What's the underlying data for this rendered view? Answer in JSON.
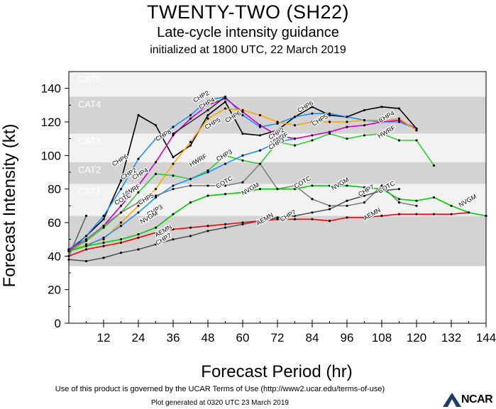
{
  "header": {
    "title": "TWENTY-TWO (SH22)",
    "subtitle": "Late-cycle intensity guidance",
    "initialized": "initialized at 1800 UTC, 22 March 2019"
  },
  "footer": {
    "terms": "Use of this product is governed by the UCAR Terms of Use (http://www2.ucar.edu/terms-of-use)",
    "generated": "Plot generated at 0320 UTC   23 March 2019",
    "logo_text": "NCAR"
  },
  "chart_data": {
    "type": "line",
    "title": "",
    "xlabel": "Forecast Period (hr)",
    "ylabel": "Forecast Intensity (kt)",
    "xlim": [
      0,
      144
    ],
    "ylim": [
      0,
      150
    ],
    "xticks": [
      12,
      24,
      36,
      48,
      60,
      72,
      84,
      96,
      108,
      120,
      132,
      144
    ],
    "yticks": [
      0,
      20,
      40,
      60,
      80,
      100,
      120,
      140
    ],
    "bands": [
      {
        "label": "CAT5",
        "from": 135,
        "to": 150,
        "color": "#f2f2f2"
      },
      {
        "label": "CAT4",
        "from": 113,
        "to": 135,
        "color": "#d3d3d3"
      },
      {
        "label": "CAT3",
        "from": 96,
        "to": 113,
        "color": "#f2f2f2"
      },
      {
        "label": "CAT2",
        "from": 83,
        "to": 96,
        "color": "#d3d3d3"
      },
      {
        "label": "CAT1",
        "from": 64,
        "to": 83,
        "color": "#f2f2f2"
      },
      {
        "label": "",
        "from": 34,
        "to": 64,
        "color": "#d3d3d3"
      }
    ],
    "ts_label": "TS",
    "series": [
      {
        "name": "CHP6",
        "color": "#000000",
        "x": [
          0,
          6,
          12,
          18,
          24,
          30,
          36,
          42,
          48,
          54,
          60,
          66,
          72,
          78,
          84,
          90,
          96,
          102,
          108,
          114,
          120
        ],
        "y": [
          43,
          52,
          62,
          85,
          124,
          118,
          99,
          106,
          124,
          132,
          113,
          112,
          115,
          123,
          129,
          124,
          123,
          127,
          129,
          128,
          116
        ],
        "labels": [
          {
            "x": 18,
            "y": 96
          },
          {
            "x": 57,
            "y": 122
          },
          {
            "x": 82,
            "y": 128
          }
        ]
      },
      {
        "name": "CHP2",
        "color": "#1e90ff",
        "x": [
          0,
          6,
          12,
          18,
          24,
          30,
          36,
          42,
          48,
          54,
          60,
          66,
          72,
          78,
          84,
          90,
          96,
          102,
          108,
          114,
          120
        ],
        "y": [
          44,
          52,
          64,
          80,
          98,
          110,
          117,
          124,
          133,
          135,
          124,
          117,
          119,
          123,
          125,
          125,
          123,
          121,
          120,
          120,
          116
        ],
        "labels": [
          {
            "x": 21,
            "y": 88
          },
          {
            "x": 46,
            "y": 134
          },
          {
            "x": 72,
            "y": 112
          }
        ]
      },
      {
        "name": "CHP4",
        "color": "#cc00cc",
        "x": [
          0,
          6,
          12,
          18,
          24,
          30,
          36,
          42,
          48,
          54,
          60,
          66,
          72,
          78,
          84,
          90,
          96,
          102,
          108,
          114,
          120
        ],
        "y": [
          44,
          50,
          58,
          70,
          82,
          96,
          112,
          122,
          130,
          134,
          126,
          118,
          112,
          110,
          112,
          114,
          117,
          118,
          120,
          121,
          116
        ],
        "labels": [
          {
            "x": 25,
            "y": 88
          },
          {
            "x": 48,
            "y": 130
          },
          {
            "x": 110,
            "y": 122
          }
        ]
      },
      {
        "name": "CHP5",
        "color": "#ffa500",
        "x": [
          0,
          6,
          12,
          18,
          24,
          30,
          36,
          42,
          48,
          54,
          60,
          66,
          72,
          78,
          84,
          90,
          96,
          102,
          108,
          114,
          120
        ],
        "y": [
          43,
          47,
          50,
          60,
          70,
          80,
          95,
          108,
          122,
          128,
          127,
          124,
          120,
          118,
          120,
          120,
          120,
          121,
          121,
          122,
          115
        ],
        "labels": [
          {
            "x": 27,
            "y": 73
          },
          {
            "x": 50,
            "y": 118
          },
          {
            "x": 87,
            "y": 120
          }
        ]
      },
      {
        "name": "CHP8",
        "color": "#333333",
        "x": [
          36,
          48,
          54
        ],
        "y": [
          113,
          127,
          135
        ],
        "labels": [
          {
            "x": 33,
            "y": 111
          }
        ]
      },
      {
        "name": "HWRF",
        "color": "#32cd32",
        "x": [
          0,
          6,
          12,
          18,
          24,
          30,
          36,
          42,
          48,
          54,
          60,
          66,
          72,
          78,
          84,
          90,
          96,
          102,
          108,
          114,
          120,
          126
        ],
        "y": [
          43,
          49,
          57,
          66,
          78,
          89,
          88,
          86,
          91,
          100,
          97,
          95,
          108,
          106,
          109,
          113,
          110,
          112,
          113,
          109,
          109,
          94
        ],
        "labels": [
          {
            "x": 22,
            "y": 78
          },
          {
            "x": 45,
            "y": 96
          },
          {
            "x": 73,
            "y": 109
          },
          {
            "x": 110,
            "y": 113
          }
        ]
      },
      {
        "name": "CHP3",
        "color": "#1e90ff",
        "x": [
          0,
          6,
          12,
          18,
          24,
          30,
          36,
          42,
          48,
          54,
          60,
          66,
          72,
          78
        ],
        "y": [
          43,
          46,
          51,
          58,
          66,
          75,
          82,
          86,
          90,
          95,
          100,
          103,
          108,
          110
        ],
        "labels": [
          {
            "x": 30,
            "y": 66
          },
          {
            "x": 54,
            "y": 99
          },
          {
            "x": 72,
            "y": 106
          }
        ]
      },
      {
        "name": "COTC",
        "color": "#808080",
        "x": [
          0,
          6,
          12,
          18,
          24,
          30,
          36,
          42,
          48,
          54,
          60,
          66,
          72,
          78,
          84,
          90,
          96,
          102,
          108,
          114,
          120
        ],
        "y": [
          43,
          50,
          58,
          66,
          72,
          76,
          80,
          82,
          82,
          82,
          84,
          95,
          80,
          82,
          74,
          70,
          70,
          72,
          82,
          72,
          70
        ],
        "labels": [
          {
            "x": 19,
            "y": 73
          },
          {
            "x": 54,
            "y": 83
          },
          {
            "x": 81,
            "y": 83
          },
          {
            "x": 110,
            "y": 80
          }
        ]
      },
      {
        "name": "NVGM",
        "color": "#00cc00",
        "x": [
          0,
          6,
          12,
          18,
          24,
          30,
          36,
          42,
          48,
          54,
          60,
          66,
          72,
          78,
          84,
          90,
          96,
          102,
          108,
          114,
          120,
          126,
          132,
          138,
          144
        ],
        "y": [
          43,
          46,
          48,
          50,
          53,
          57,
          65,
          72,
          76,
          77,
          78,
          80,
          80,
          80,
          82,
          82,
          82,
          81,
          80,
          74,
          73,
          75,
          70,
          66,
          64
        ],
        "labels": [
          {
            "x": 28,
            "y": 62
          },
          {
            "x": 63,
            "y": 79
          },
          {
            "x": 94,
            "y": 82
          },
          {
            "x": 138,
            "y": 72
          }
        ]
      },
      {
        "name": "CHP7",
        "color": "#555555",
        "x": [
          0,
          6,
          12,
          18,
          24,
          30,
          36,
          42,
          48,
          54,
          60,
          66,
          72,
          78,
          84,
          90,
          96,
          102,
          108,
          114
        ],
        "y": [
          38,
          37,
          39,
          42,
          44,
          47,
          50,
          52,
          55,
          57,
          59,
          61,
          63,
          64,
          66,
          68,
          73,
          76,
          79,
          80
        ],
        "labels": [
          {
            "x": 33,
            "y": 49
          },
          {
            "x": 76,
            "y": 63
          },
          {
            "x": 103,
            "y": 78
          }
        ]
      },
      {
        "name": "AEMN",
        "color": "#ff0000",
        "x": [
          0,
          6,
          12,
          18,
          24,
          30,
          36,
          42,
          48,
          54,
          60,
          66,
          72,
          78,
          84,
          90,
          96,
          102,
          108,
          114,
          120,
          126,
          132,
          138
        ],
        "y": [
          40,
          44,
          46,
          48,
          51,
          54,
          56,
          57,
          58,
          59,
          60,
          61,
          62,
          62,
          62,
          61,
          63,
          63,
          64,
          65,
          65,
          65,
          65,
          66
        ],
        "labels": [
          {
            "x": 33,
            "y": 54
          },
          {
            "x": 68,
            "y": 61
          },
          {
            "x": 105,
            "y": 64
          }
        ]
      },
      {
        "name": "",
        "color": "#666666",
        "x": [
          0,
          6
        ],
        "y": [
          40,
          64
        ],
        "labels": []
      }
    ]
  }
}
